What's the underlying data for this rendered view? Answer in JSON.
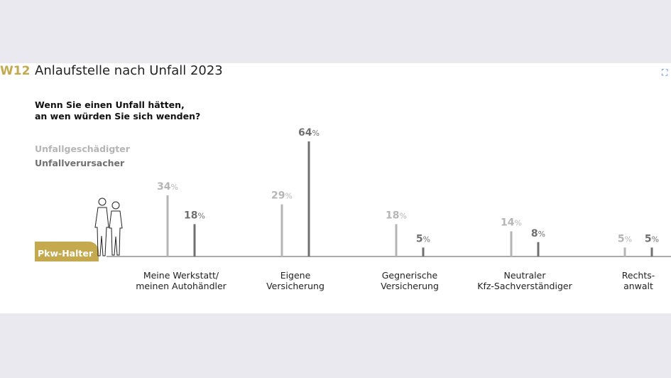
{
  "header": {
    "code": "W12",
    "title": "Anlaufstelle nach Unfall 2023",
    "question_line1": "Wenn Sie einen Unfall hätten,",
    "question_line2": "an wen würden Sie sich wenden?"
  },
  "badge": "Pkw-Halter",
  "icons": {
    "fullscreen": "fullscreen-icon"
  },
  "chart_data": {
    "type": "bar",
    "unit": "%",
    "categories": [
      [
        "Meine Werkstatt/",
        "meinen Autohändler"
      ],
      [
        "Eigene",
        "Versicherung"
      ],
      [
        "Gegnerische",
        "Versicherung"
      ],
      [
        "Neutraler",
        "Kfz-Sachverständiger"
      ],
      [
        "Rechts-",
        "anwalt"
      ]
    ],
    "series": [
      {
        "name": "Unfallgeschädigter",
        "color": "#b5b5b5",
        "values": [
          34,
          29,
          18,
          14,
          5
        ]
      },
      {
        "name": "Unfallverursacher",
        "color": "#707070",
        "values": [
          18,
          64,
          5,
          8,
          5
        ]
      }
    ],
    "ylim": [
      0,
      64
    ],
    "grid": false,
    "legend": "top-left"
  }
}
